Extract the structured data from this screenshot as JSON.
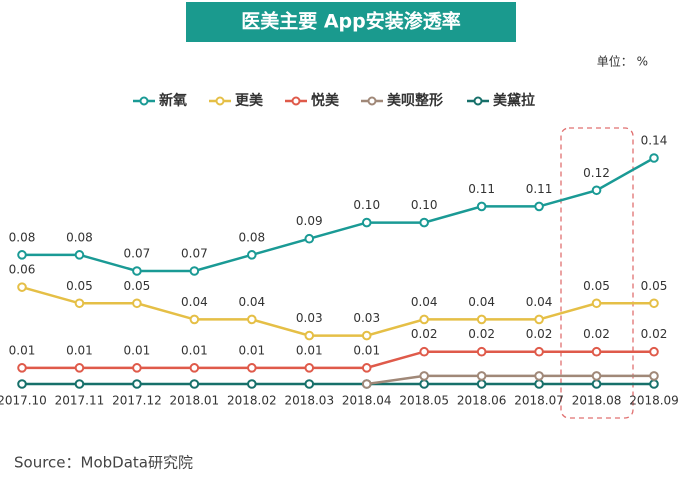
{
  "chart_data": {
    "type": "line",
    "title": "医美主要 App安装渗透率",
    "unit_label": "单位： %",
    "source": "Source：MobData研究院",
    "categories": [
      "2017.10",
      "2017.11",
      "2017.12",
      "2018.01",
      "2018.02",
      "2018.03",
      "2018.04",
      "2018.05",
      "2018.06",
      "2018.07",
      "2018.08",
      "2018.09"
    ],
    "series": [
      {
        "name": "新氧",
        "color": "#1a9a95",
        "values": [
          0.08,
          0.08,
          0.07,
          0.07,
          0.08,
          0.09,
          0.1,
          0.1,
          0.11,
          0.11,
          0.12,
          0.14
        ],
        "value_labels": [
          "0.08",
          "0.08",
          "0.07",
          "0.07",
          "0.08",
          "0.09",
          "0.10",
          "0.10",
          "0.11",
          "0.11",
          "0.12",
          "0.14"
        ]
      },
      {
        "name": "更美",
        "color": "#e5bf46",
        "values": [
          0.06,
          0.05,
          0.05,
          0.04,
          0.04,
          0.03,
          0.03,
          0.04,
          0.04,
          0.04,
          0.05,
          0.05
        ],
        "value_labels": [
          "0.06",
          "0.05",
          "0.05",
          "0.04",
          "0.04",
          "0.03",
          "0.03",
          "0.04",
          "0.04",
          "0.04",
          "0.05",
          "0.05"
        ]
      },
      {
        "name": "悦美",
        "color": "#df5a4a",
        "values": [
          0.01,
          0.01,
          0.01,
          0.01,
          0.01,
          0.01,
          0.01,
          0.02,
          0.02,
          0.02,
          0.02,
          0.02
        ],
        "value_labels": [
          "0.01",
          "0.01",
          "0.01",
          "0.01",
          "0.01",
          "0.01",
          "0.01",
          "0.02",
          "0.02",
          "0.02",
          "0.02",
          "0.02"
        ]
      },
      {
        "name": "美呗整形",
        "color": "#a08878",
        "values": [
          null,
          null,
          null,
          null,
          null,
          null,
          0,
          0.005,
          0.005,
          0.005,
          0.005,
          0.005
        ]
      },
      {
        "name": "美黛拉",
        "color": "#17706a",
        "values": [
          0,
          0,
          0,
          0,
          0,
          0,
          0,
          0,
          0,
          0,
          0,
          0
        ]
      }
    ]
  }
}
